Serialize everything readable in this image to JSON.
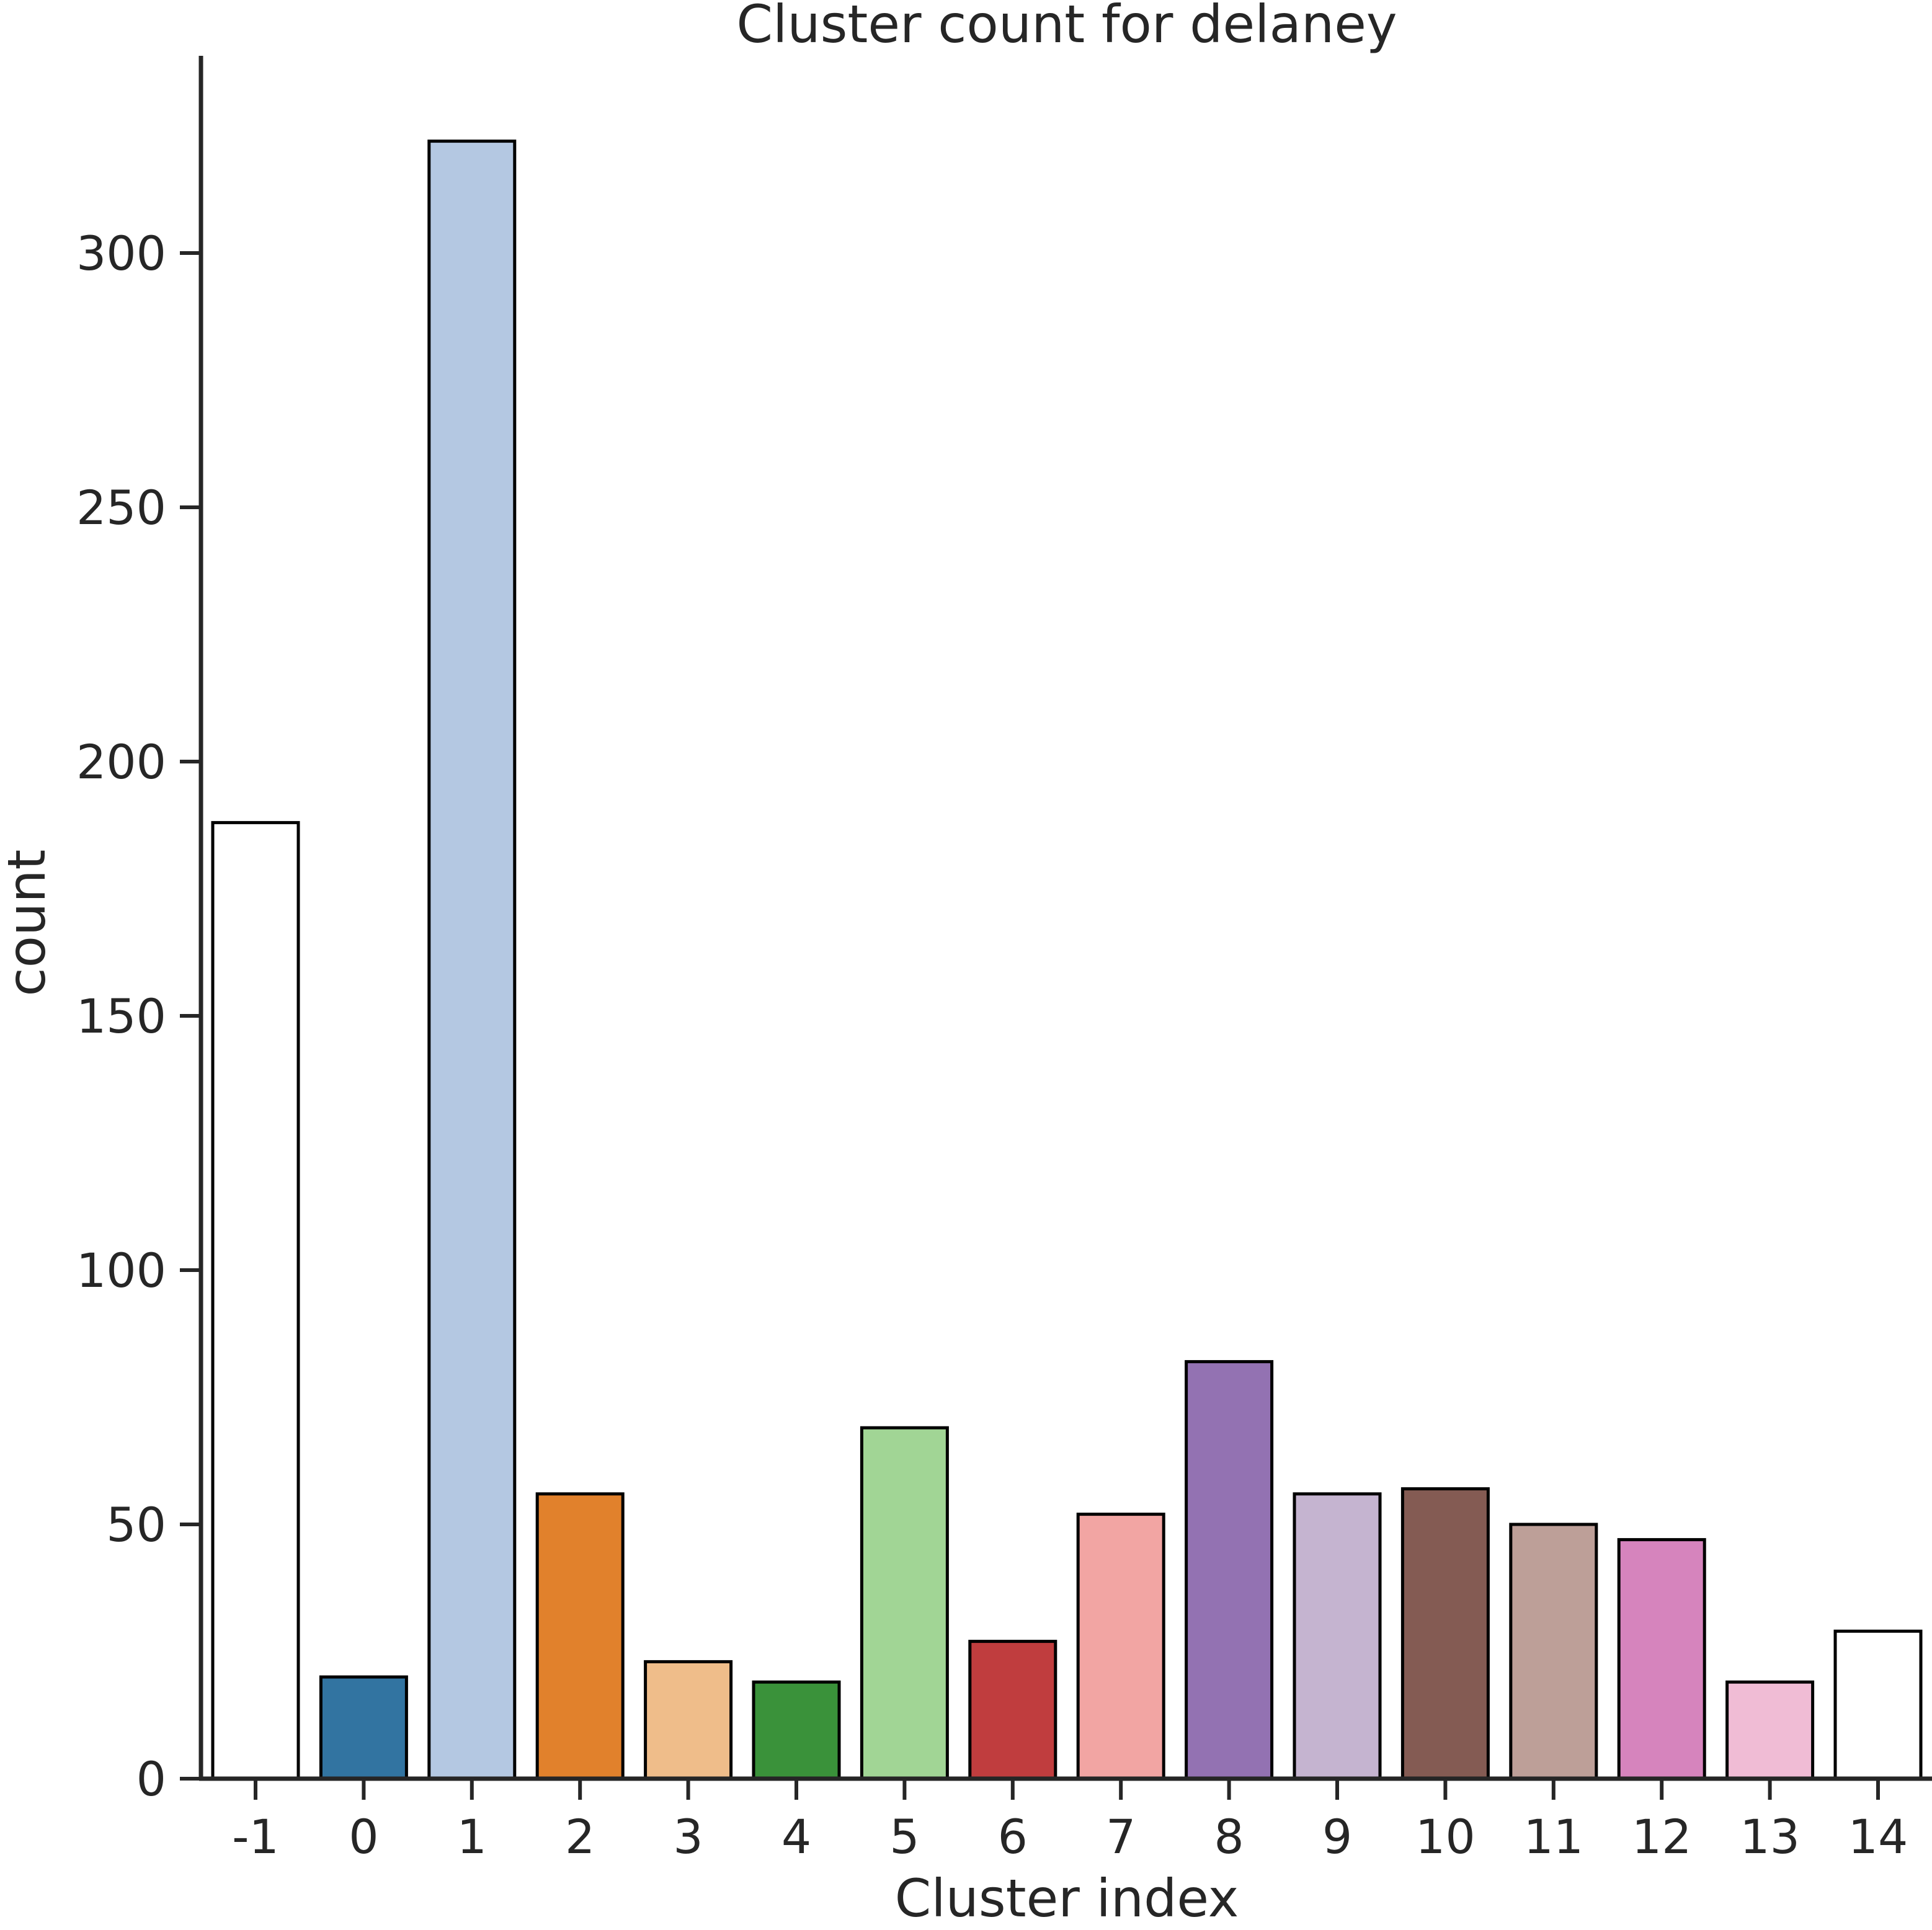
{
  "chart_data": {
    "type": "bar",
    "title": "Cluster count for delaney",
    "xlabel": "Cluster index",
    "ylabel": "count",
    "categories": [
      "-1",
      "0",
      "1",
      "2",
      "3",
      "4",
      "5",
      "6",
      "7",
      "8",
      "9",
      "10",
      "11",
      "12",
      "13",
      "14"
    ],
    "values": [
      188,
      20,
      322,
      56,
      23,
      19,
      69,
      27,
      52,
      82,
      56,
      57,
      50,
      47,
      19,
      29
    ],
    "colors": [
      "#ffffff",
      "#3274a1",
      "#b4c8e2",
      "#e1812c",
      "#efbd8a",
      "#3a923a",
      "#a1d595",
      "#c03d3e",
      "#f2a5a3",
      "#9372b2",
      "#c5b4d0",
      "#845b53",
      "#bd9f98",
      "#d684bd",
      "#f0bcd5",
      "#ffffff"
    ],
    "bar_edge_color": "#000000",
    "ylim": [
      0,
      338
    ],
    "yticks": [
      0,
      50,
      100,
      150,
      200,
      250,
      300
    ],
    "grid": false
  }
}
